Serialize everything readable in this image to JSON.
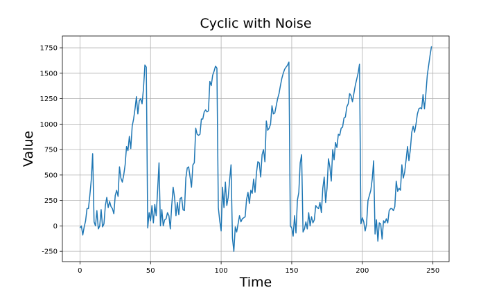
{
  "chart_data": {
    "type": "line",
    "title": "Cyclic with Noise",
    "x_label": "Time",
    "y_label": "Value",
    "x": [
      0,
      1,
      2,
      3,
      4,
      5,
      6,
      7,
      8,
      9,
      10,
      11,
      12,
      13,
      14,
      15,
      16,
      17,
      18,
      19,
      20,
      21,
      22,
      23,
      24,
      25,
      26,
      27,
      28,
      29,
      30,
      31,
      32,
      33,
      34,
      35,
      36,
      37,
      38,
      39,
      40,
      41,
      42,
      43,
      44,
      45,
      46,
      47,
      48,
      49,
      50,
      51,
      52,
      53,
      54,
      55,
      56,
      57,
      58,
      59,
      60,
      61,
      62,
      63,
      64,
      65,
      66,
      67,
      68,
      69,
      70,
      71,
      72,
      73,
      74,
      75,
      76,
      77,
      78,
      79,
      80,
      81,
      82,
      83,
      84,
      85,
      86,
      87,
      88,
      89,
      90,
      91,
      92,
      93,
      94,
      95,
      96,
      97,
      98,
      99,
      100,
      101,
      102,
      103,
      104,
      105,
      106,
      107,
      108,
      109,
      110,
      111,
      112,
      113,
      114,
      115,
      116,
      117,
      118,
      119,
      120,
      121,
      122,
      123,
      124,
      125,
      126,
      127,
      128,
      129,
      130,
      131,
      132,
      133,
      134,
      135,
      136,
      137,
      138,
      139,
      140,
      141,
      142,
      143,
      144,
      145,
      146,
      147,
      148,
      149,
      150,
      151,
      152,
      153,
      154,
      155,
      156,
      157,
      158,
      159,
      160,
      161,
      162,
      163,
      164,
      165,
      166,
      167,
      168,
      169,
      170,
      171,
      172,
      173,
      174,
      175,
      176,
      177,
      178,
      179,
      180,
      181,
      182,
      183,
      184,
      185,
      186,
      187,
      188,
      189,
      190,
      191,
      192,
      193,
      194,
      195,
      196,
      197,
      198,
      199,
      200,
      201,
      202,
      203,
      204,
      205,
      206,
      207,
      208,
      209,
      210,
      211,
      212,
      213,
      214,
      215,
      216,
      217,
      218,
      219,
      220,
      221,
      222,
      223,
      224,
      225,
      226,
      227,
      228,
      229,
      230,
      231,
      232,
      233,
      234,
      235,
      236,
      237,
      238,
      239,
      240,
      241,
      242,
      243,
      244,
      245,
      246,
      247,
      248,
      249
    ],
    "series": [
      {
        "name": "Value",
        "color": "#1f77b4",
        "values": [
          -20,
          0,
          -90,
          -10,
          50,
          170,
          170,
          300,
          450,
          710,
          40,
          0,
          150,
          -30,
          0,
          160,
          -10,
          20,
          200,
          280,
          180,
          240,
          190,
          170,
          120,
          300,
          350,
          290,
          580,
          470,
          430,
          500,
          600,
          780,
          740,
          880,
          760,
          980,
          1050,
          1150,
          1270,
          1100,
          1230,
          1250,
          1200,
          1350,
          1580,
          1560,
          -20,
          130,
          50,
          200,
          30,
          210,
          100,
          350,
          620,
          0,
          160,
          0,
          60,
          70,
          130,
          100,
          -30,
          200,
          380,
          280,
          100,
          230,
          110,
          270,
          280,
          160,
          150,
          470,
          570,
          580,
          480,
          380,
          600,
          620,
          960,
          900,
          890,
          900,
          1050,
          1050,
          1120,
          1140,
          1120,
          1130,
          1420,
          1380,
          1480,
          1520,
          1570,
          1550,
          180,
          50,
          -50,
          380,
          180,
          430,
          200,
          280,
          450,
          600,
          -120,
          -250,
          -10,
          -60,
          20,
          100,
          40,
          70,
          80,
          90,
          260,
          330,
          220,
          350,
          320,
          460,
          330,
          520,
          630,
          620,
          480,
          700,
          750,
          630,
          1030,
          940,
          960,
          1000,
          1180,
          1100,
          1110,
          1180,
          1250,
          1300,
          1380,
          1450,
          1500,
          1540,
          1560,
          1580,
          1610,
          0,
          -20,
          -100,
          100,
          -70,
          250,
          330,
          620,
          700,
          -60,
          -30,
          40,
          -30,
          130,
          0,
          90,
          30,
          60,
          200,
          180,
          170,
          230,
          130,
          370,
          480,
          230,
          370,
          660,
          580,
          440,
          750,
          650,
          820,
          770,
          900,
          890,
          960,
          970,
          1060,
          1070,
          1170,
          1200,
          1300,
          1280,
          1220,
          1300,
          1380,
          1440,
          1500,
          1590,
          20,
          80,
          40,
          -50,
          20,
          250,
          300,
          350,
          460,
          640,
          -80,
          60,
          -150,
          30,
          20,
          -130,
          50,
          30,
          70,
          30,
          150,
          170,
          170,
          150,
          190,
          440,
          340,
          370,
          350,
          600,
          470,
          530,
          650,
          780,
          640,
          750,
          920,
          980,
          920,
          1000,
          1100,
          1150,
          1160,
          1150,
          1290,
          1150,
          1300,
          1480,
          1580,
          1680,
          1765
        ]
      }
    ],
    "xlim": [
      -12.45,
      261.45
    ],
    "ylim": [
      -351,
      1866
    ],
    "xticks": [
      0,
      50,
      100,
      150,
      200,
      250
    ],
    "yticks": [
      -250,
      0,
      250,
      500,
      750,
      1000,
      1250,
      1500,
      1750
    ],
    "grid": true
  }
}
